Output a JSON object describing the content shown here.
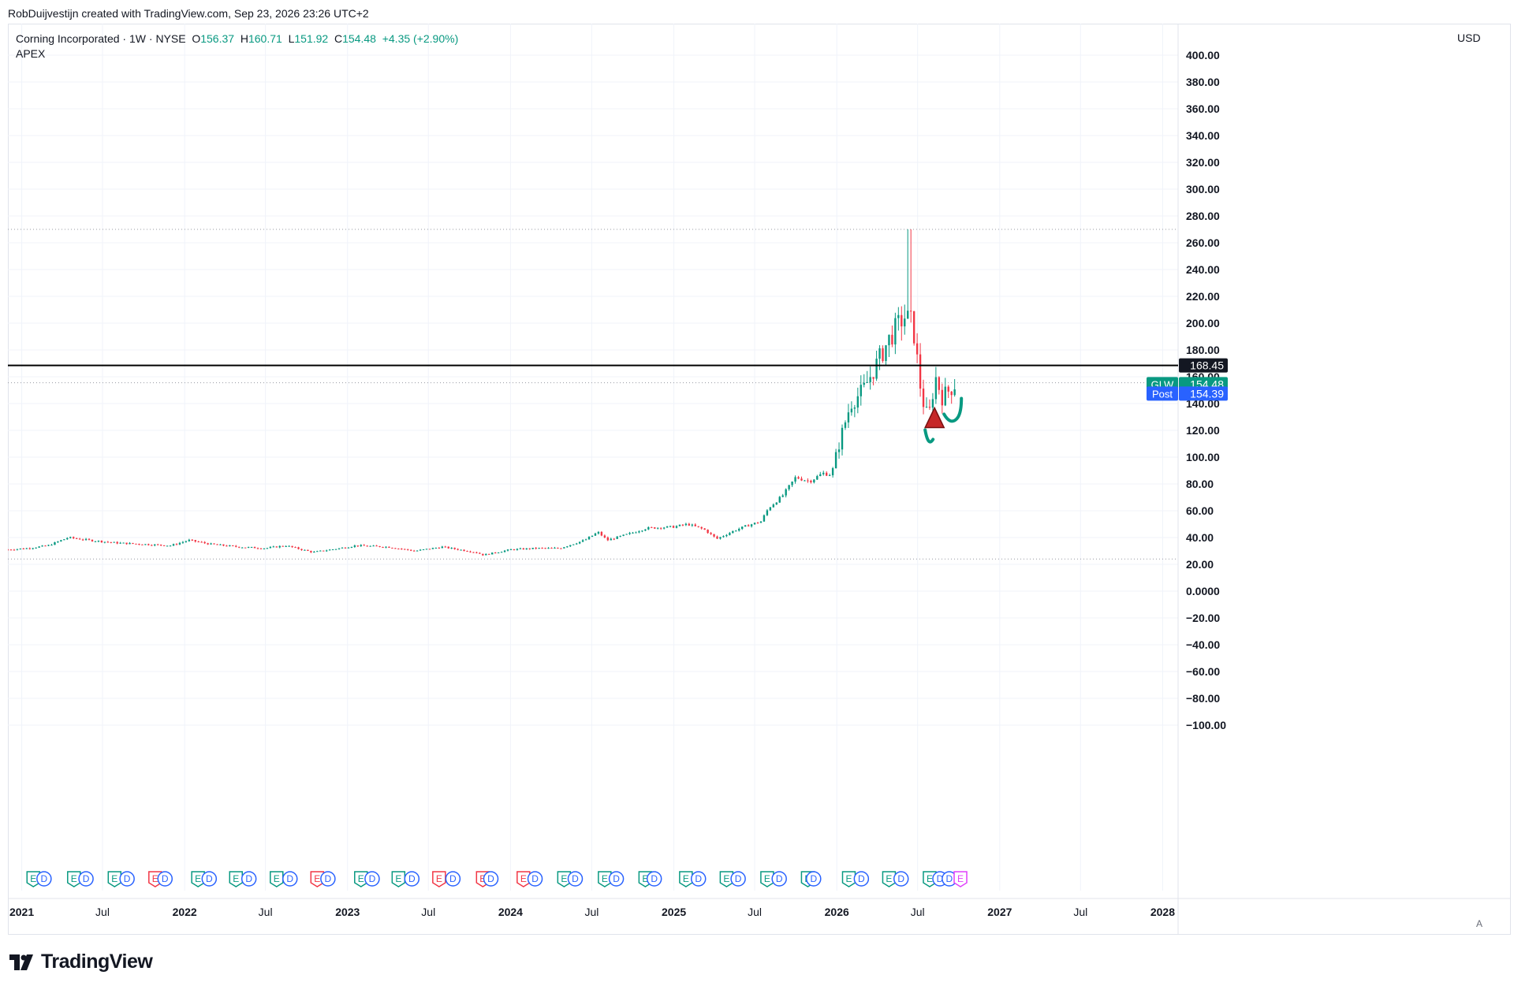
{
  "attribution": "RobDuijvestijn created with TradingView.com, Sep 23, 2026 23:26 UTC+2",
  "symbol": {
    "name": "Corning Incorporated",
    "interval": "1W",
    "exchange": "NYSE",
    "o_label": "O",
    "o_value": "156.37",
    "h_label": "H",
    "h_value": "160.71",
    "l_label": "L",
    "l_value": "151.92",
    "c_label": "C",
    "c_value": "154.48",
    "change": "+4.35 (+2.90%)"
  },
  "indicator": "APEX",
  "currency": "USD",
  "brand": "TradingView",
  "auto_scale": "A",
  "colors": {
    "up": "#089981",
    "down": "#f23645",
    "post": "#2962ff",
    "level": "#000000",
    "dividend": "#2962ff",
    "earnings_up": "#089981",
    "earnings_down": "#f23645"
  },
  "chart_data": {
    "type": "candlestick",
    "y_scale": "linear",
    "ylim": [
      -100,
      400
    ],
    "yticks": [
      400,
      380,
      360,
      340,
      320,
      300,
      280,
      260,
      240,
      220,
      200,
      180,
      160,
      140,
      120,
      100,
      80,
      60,
      40,
      20,
      0,
      -20,
      -40,
      -60,
      -80,
      -100
    ],
    "ytick_labels": [
      "400.00",
      "380.00",
      "360.00",
      "340.00",
      "320.00",
      "300.00",
      "280.00",
      "260.00",
      "240.00",
      "220.00",
      "200.00",
      "180.00",
      "160.00",
      "140.00",
      "120.00",
      "100.00",
      "80.00",
      "60.00",
      "40.00",
      "20.00",
      "0.0000",
      "−20.00",
      "−40.00",
      "−60.00",
      "−80.00",
      "−100.00"
    ],
    "xlim": [
      "2020-12-01",
      "2028-02-01"
    ],
    "xticks": [
      {
        "date": "2021-01-01",
        "label": "2021",
        "major": true
      },
      {
        "date": "2021-07-01",
        "label": "Jul",
        "major": false
      },
      {
        "date": "2022-01-01",
        "label": "2022",
        "major": true
      },
      {
        "date": "2022-07-01",
        "label": "Jul",
        "major": false
      },
      {
        "date": "2023-01-01",
        "label": "2023",
        "major": true
      },
      {
        "date": "2023-07-01",
        "label": "Jul",
        "major": false
      },
      {
        "date": "2024-01-01",
        "label": "2024",
        "major": true
      },
      {
        "date": "2024-07-01",
        "label": "Jul",
        "major": false
      },
      {
        "date": "2025-01-01",
        "label": "2025",
        "major": true
      },
      {
        "date": "2025-07-01",
        "label": "Jul",
        "major": false
      },
      {
        "date": "2026-01-01",
        "label": "2026",
        "major": true
      },
      {
        "date": "2026-07-01",
        "label": "Jul",
        "major": false
      },
      {
        "date": "2027-01-01",
        "label": "2027",
        "major": true
      },
      {
        "date": "2027-07-01",
        "label": "Jul",
        "major": false
      },
      {
        "date": "2028-01-01",
        "label": "2028",
        "major": true
      }
    ],
    "grid": true,
    "price_path": [
      [
        "2020-12-01",
        31
      ],
      [
        "2021-01-15",
        32
      ],
      [
        "2021-03-01",
        34
      ],
      [
        "2021-04-15",
        40
      ],
      [
        "2021-06-01",
        38
      ],
      [
        "2021-08-01",
        36
      ],
      [
        "2021-10-01",
        35
      ],
      [
        "2021-12-01",
        34
      ],
      [
        "2022-01-10",
        38
      ],
      [
        "2022-03-01",
        35
      ],
      [
        "2022-05-01",
        33
      ],
      [
        "2022-07-01",
        32
      ],
      [
        "2022-08-15",
        34
      ],
      [
        "2022-10-15",
        29
      ],
      [
        "2022-12-15",
        32
      ],
      [
        "2023-01-20",
        34
      ],
      [
        "2023-04-01",
        33
      ],
      [
        "2023-06-01",
        30
      ],
      [
        "2023-08-01",
        33
      ],
      [
        "2023-10-15",
        29
      ],
      [
        "2023-11-01",
        27
      ],
      [
        "2024-01-01",
        31
      ],
      [
        "2024-03-01",
        32
      ],
      [
        "2024-04-20",
        32
      ],
      [
        "2024-06-15",
        38
      ],
      [
        "2024-07-15",
        44
      ],
      [
        "2024-08-05",
        38
      ],
      [
        "2024-09-15",
        42
      ],
      [
        "2024-11-01",
        47
      ],
      [
        "2025-01-01",
        48
      ],
      [
        "2025-02-01",
        50
      ],
      [
        "2025-03-10",
        46
      ],
      [
        "2025-04-07",
        39
      ],
      [
        "2025-05-15",
        45
      ],
      [
        "2025-06-15",
        49
      ],
      [
        "2025-07-15",
        52
      ],
      [
        "2025-08-01",
        62
      ],
      [
        "2025-09-01",
        71
      ],
      [
        "2025-10-01",
        85
      ],
      [
        "2025-11-01",
        82
      ],
      [
        "2025-12-01",
        88
      ],
      [
        "2025-12-20",
        87
      ],
      [
        "2026-01-10",
        115
      ],
      [
        "2026-02-01",
        140
      ],
      [
        "2026-03-01",
        150
      ],
      [
        "2026-04-01",
        170
      ],
      [
        "2026-05-01",
        190
      ],
      [
        "2026-06-01",
        205
      ],
      [
        "2026-06-20",
        200
      ],
      [
        "2026-07-10",
        145
      ],
      [
        "2026-07-25",
        128
      ],
      [
        "2026-08-10",
        160
      ],
      [
        "2026-08-25",
        145
      ],
      [
        "2026-09-10",
        150
      ],
      [
        "2026-09-23",
        154.48
      ]
    ],
    "horizontal_line": {
      "value": 168.45,
      "label": "168.45"
    },
    "dotted_lines": [
      270,
      155.5,
      24
    ],
    "last_price": {
      "symbol": "GLW",
      "value": 154.48,
      "label": "154.48"
    },
    "post_price": {
      "label": "Post",
      "value": 154.39,
      "text": "154.39"
    },
    "triangle_marker": {
      "date": "2026-08-08",
      "value": 125
    },
    "events_row": [
      {
        "date": "2021-01-27",
        "type": "E",
        "tone": "up"
      },
      {
        "date": "2021-02-20",
        "type": "D"
      },
      {
        "date": "2021-04-28",
        "type": "E",
        "tone": "up"
      },
      {
        "date": "2021-05-25",
        "type": "D"
      },
      {
        "date": "2021-07-28",
        "type": "E",
        "tone": "up"
      },
      {
        "date": "2021-08-25",
        "type": "D"
      },
      {
        "date": "2021-10-27",
        "type": "E",
        "tone": "down"
      },
      {
        "date": "2021-11-18",
        "type": "D"
      },
      {
        "date": "2022-01-31",
        "type": "E",
        "tone": "up"
      },
      {
        "date": "2022-02-25",
        "type": "D"
      },
      {
        "date": "2022-04-26",
        "type": "E",
        "tone": "up"
      },
      {
        "date": "2022-05-25",
        "type": "D"
      },
      {
        "date": "2022-07-26",
        "type": "E",
        "tone": "up"
      },
      {
        "date": "2022-08-25",
        "type": "D"
      },
      {
        "date": "2022-10-25",
        "type": "E",
        "tone": "down"
      },
      {
        "date": "2022-11-18",
        "type": "D"
      },
      {
        "date": "2023-01-31",
        "type": "E",
        "tone": "up"
      },
      {
        "date": "2023-02-25",
        "type": "D"
      },
      {
        "date": "2023-04-25",
        "type": "E",
        "tone": "up"
      },
      {
        "date": "2023-05-25",
        "type": "D"
      },
      {
        "date": "2023-07-25",
        "type": "E",
        "tone": "down"
      },
      {
        "date": "2023-08-25",
        "type": "D"
      },
      {
        "date": "2023-10-31",
        "type": "E",
        "tone": "down"
      },
      {
        "date": "2023-11-18",
        "type": "D"
      },
      {
        "date": "2024-01-30",
        "type": "E",
        "tone": "down"
      },
      {
        "date": "2024-02-25",
        "type": "D"
      },
      {
        "date": "2024-04-30",
        "type": "E",
        "tone": "up"
      },
      {
        "date": "2024-05-25",
        "type": "D"
      },
      {
        "date": "2024-07-30",
        "type": "E",
        "tone": "up"
      },
      {
        "date": "2024-08-25",
        "type": "D"
      },
      {
        "date": "2024-10-29",
        "type": "E",
        "tone": "up"
      },
      {
        "date": "2024-11-18",
        "type": "D"
      },
      {
        "date": "2025-01-28",
        "type": "E",
        "tone": "up"
      },
      {
        "date": "2025-02-25",
        "type": "D"
      },
      {
        "date": "2025-04-29",
        "type": "E",
        "tone": "up"
      },
      {
        "date": "2025-05-25",
        "type": "D"
      },
      {
        "date": "2025-07-29",
        "type": "E",
        "tone": "up"
      },
      {
        "date": "2025-08-25",
        "type": "D"
      },
      {
        "date": "2025-10-28",
        "type": "E",
        "tone": "up"
      },
      {
        "date": "2025-11-10",
        "type": "D"
      },
      {
        "date": "2026-01-28",
        "type": "E",
        "tone": "up"
      },
      {
        "date": "2026-02-25",
        "type": "D"
      },
      {
        "date": "2026-04-28",
        "type": "E",
        "tone": "up"
      },
      {
        "date": "2026-05-25",
        "type": "D"
      },
      {
        "date": "2026-07-28",
        "type": "E",
        "tone": "up"
      },
      {
        "date": "2026-08-20",
        "type": "D"
      },
      {
        "date": "2026-09-10",
        "type": "D"
      },
      {
        "date": "2026-10-05",
        "type": "E",
        "tone": "future"
      }
    ]
  }
}
